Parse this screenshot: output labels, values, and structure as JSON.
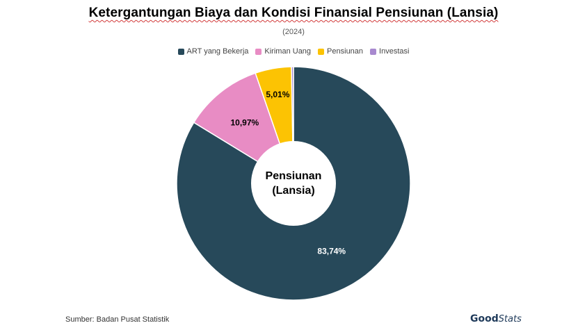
{
  "chart_data": {
    "type": "pie",
    "title": "Ketergantungan Biaya dan Kondisi Finansial Pensiunan (Lansia)",
    "subtitle": "(2024)",
    "center_label": [
      "Pensiunan",
      "(Lansia)"
    ],
    "legend_position": "top",
    "slices": [
      {
        "name": "ART yang Bekerja",
        "value": 83.74,
        "label": "83,74%",
        "color": "#27495a"
      },
      {
        "name": "Kiriman Uang",
        "value": 10.97,
        "label": "10,97%",
        "color": "#e88cc4"
      },
      {
        "name": "Pensiunan",
        "value": 5.01,
        "label": "5,01%",
        "color": "#fcc303"
      },
      {
        "name": "Investasi",
        "value": 0.28,
        "label": "",
        "color": "#a889cf"
      }
    ]
  },
  "footer": {
    "source": "Sumber: Badan Pusat Statistik",
    "logo_good": "Good",
    "logo_stats": "Stats"
  }
}
